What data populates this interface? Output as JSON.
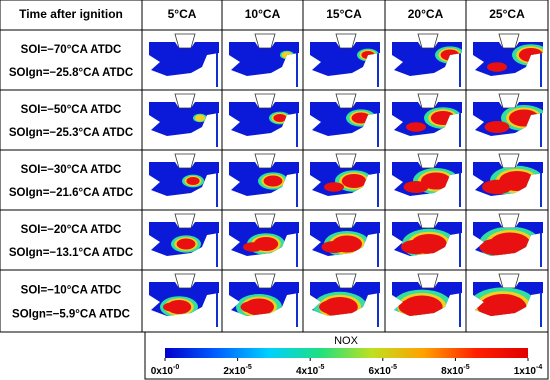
{
  "table": {
    "header": [
      "Time after ignition",
      "5°CA",
      "10°CA",
      "15°CA",
      "20°CA",
      "25°CA"
    ],
    "rows": [
      {
        "soi": "SOI=−70°CA ATDC",
        "soign": "SOIgn=−25.8°CA ATDC"
      },
      {
        "soi": "SOI=−50°CA ATDC",
        "soign": "SOIgn=−25.3°CA ATDC"
      },
      {
        "soi": "SOI=−30°CA ATDC",
        "soign": "SOIgn=−21.6°CA ATDC"
      },
      {
        "soi": "SOI=−20°CA ATDC",
        "soign": "SOIgn=−13.1°CA ATDC"
      },
      {
        "soi": "SOI=−10°CA ATDC",
        "soign": "SOIgn=−5.9°CA ATDC"
      }
    ]
  },
  "colorbar": {
    "label": "NOX",
    "lim": [
      0,
      0.0001
    ],
    "ticks": [
      {
        "value": 0,
        "label": "0x10",
        "exponent": "-0"
      },
      {
        "value": 2e-05,
        "label": "2x10",
        "exponent": "-5"
      },
      {
        "value": 4e-05,
        "label": "4x10",
        "exponent": "-5"
      },
      {
        "value": 6e-05,
        "label": "6x10",
        "exponent": "-5"
      },
      {
        "value": 8e-05,
        "label": "8x10",
        "exponent": "-5"
      },
      {
        "value": 0.0001,
        "label": "1x10",
        "exponent": "-4"
      }
    ],
    "colors": [
      "#0000cc",
      "#0060ff",
      "#00d0ff",
      "#20e080",
      "#c0e020",
      "#ffa000",
      "#ff2000",
      "#e00000"
    ]
  }
}
